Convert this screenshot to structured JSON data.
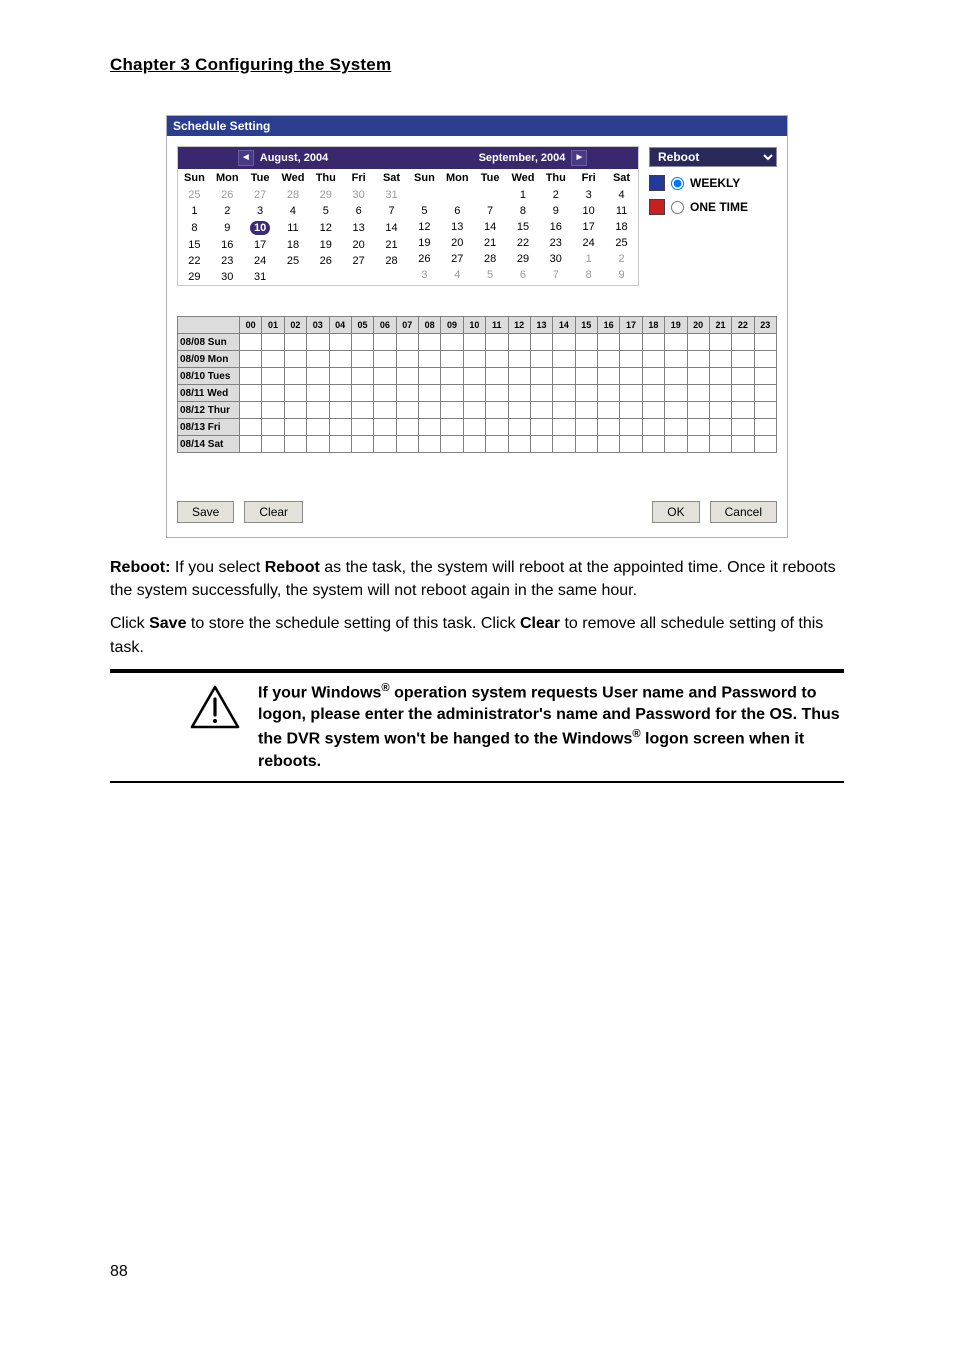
{
  "chapter_heading": "Chapter 3    Configuring the System",
  "shot": {
    "window_title": "Schedule Setting",
    "month_left": {
      "title": "August, 2004",
      "dow": [
        "Sun",
        "Mon",
        "Tue",
        "Wed",
        "Thu",
        "Fri",
        "Sat"
      ],
      "cells": [
        {
          "t": "25",
          "dim": true
        },
        {
          "t": "26",
          "dim": true
        },
        {
          "t": "27",
          "dim": true
        },
        {
          "t": "28",
          "dim": true
        },
        {
          "t": "29",
          "dim": true
        },
        {
          "t": "30",
          "dim": true
        },
        {
          "t": "31",
          "dim": true
        },
        {
          "t": "1"
        },
        {
          "t": "2"
        },
        {
          "t": "3"
        },
        {
          "t": "4"
        },
        {
          "t": "5"
        },
        {
          "t": "6"
        },
        {
          "t": "7"
        },
        {
          "t": "8"
        },
        {
          "t": "9"
        },
        {
          "t": "10",
          "today": true
        },
        {
          "t": "11"
        },
        {
          "t": "12"
        },
        {
          "t": "13"
        },
        {
          "t": "14"
        },
        {
          "t": "15"
        },
        {
          "t": "16"
        },
        {
          "t": "17"
        },
        {
          "t": "18"
        },
        {
          "t": "19"
        },
        {
          "t": "20"
        },
        {
          "t": "21"
        },
        {
          "t": "22"
        },
        {
          "t": "23"
        },
        {
          "t": "24"
        },
        {
          "t": "25"
        },
        {
          "t": "26"
        },
        {
          "t": "27"
        },
        {
          "t": "28"
        },
        {
          "t": "29"
        },
        {
          "t": "30"
        },
        {
          "t": "31"
        },
        {
          "t": ""
        },
        {
          "t": ""
        },
        {
          "t": ""
        },
        {
          "t": ""
        }
      ]
    },
    "month_right": {
      "title": "September, 2004",
      "dow": [
        "Sun",
        "Mon",
        "Tue",
        "Wed",
        "Thu",
        "Fri",
        "Sat"
      ],
      "cells": [
        {
          "t": ""
        },
        {
          "t": ""
        },
        {
          "t": ""
        },
        {
          "t": "1"
        },
        {
          "t": "2"
        },
        {
          "t": "3"
        },
        {
          "t": "4"
        },
        {
          "t": "5"
        },
        {
          "t": "6"
        },
        {
          "t": "7"
        },
        {
          "t": "8"
        },
        {
          "t": "9"
        },
        {
          "t": "10"
        },
        {
          "t": "11"
        },
        {
          "t": "12"
        },
        {
          "t": "13"
        },
        {
          "t": "14"
        },
        {
          "t": "15"
        },
        {
          "t": "16"
        },
        {
          "t": "17"
        },
        {
          "t": "18"
        },
        {
          "t": "19"
        },
        {
          "t": "20"
        },
        {
          "t": "21"
        },
        {
          "t": "22"
        },
        {
          "t": "23"
        },
        {
          "t": "24"
        },
        {
          "t": "25"
        },
        {
          "t": "26"
        },
        {
          "t": "27"
        },
        {
          "t": "28"
        },
        {
          "t": "29"
        },
        {
          "t": "30"
        },
        {
          "t": "1",
          "dim": true
        },
        {
          "t": "2",
          "dim": true
        },
        {
          "t": "3",
          "dim": true
        },
        {
          "t": "4",
          "dim": true
        },
        {
          "t": "5",
          "dim": true
        },
        {
          "t": "6",
          "dim": true
        },
        {
          "t": "7",
          "dim": true
        },
        {
          "t": "8",
          "dim": true
        },
        {
          "t": "9",
          "dim": true
        }
      ]
    },
    "task_value": "Reboot",
    "opt_weekly": "WEEKLY",
    "opt_onetime": "ONE TIME",
    "hours": [
      "00",
      "01",
      "02",
      "03",
      "04",
      "05",
      "06",
      "07",
      "08",
      "09",
      "10",
      "11",
      "12",
      "13",
      "14",
      "15",
      "16",
      "17",
      "18",
      "19",
      "20",
      "21",
      "22",
      "23"
    ],
    "rows": [
      "08/08 Sun",
      "08/09 Mon",
      "08/10 Tues",
      "08/11 Wed",
      "08/12 Thur",
      "08/13 Fri",
      "08/14 Sat"
    ],
    "buttons": {
      "save": "Save",
      "clear": "Clear",
      "ok": "OK",
      "cancel": "Cancel"
    }
  },
  "para1_a": "Reboot:",
  "para1_b": " If you select ",
  "para1_c": "Reboot",
  "para1_d": " as the task, the system will reboot at the appointed time. Once it reboots the system successfully, the system will not reboot again in the same hour.",
  "para2_a": "Click ",
  "para2_b": "Save",
  "para2_c": " to store the schedule setting of this task. Click ",
  "para2_d": "Clear",
  "para2_e": " to remove all schedule setting of this task.",
  "note_l1a": "If your Windows",
  "note_l1b": " operation system requests User name and Password to logon, please enter the administrator's name and Password for the OS. Thus the DVR system won't be hanged to the Windows",
  "note_l1c": " logon screen when it reboots.",
  "note_sup": "®",
  "page_number": "88"
}
